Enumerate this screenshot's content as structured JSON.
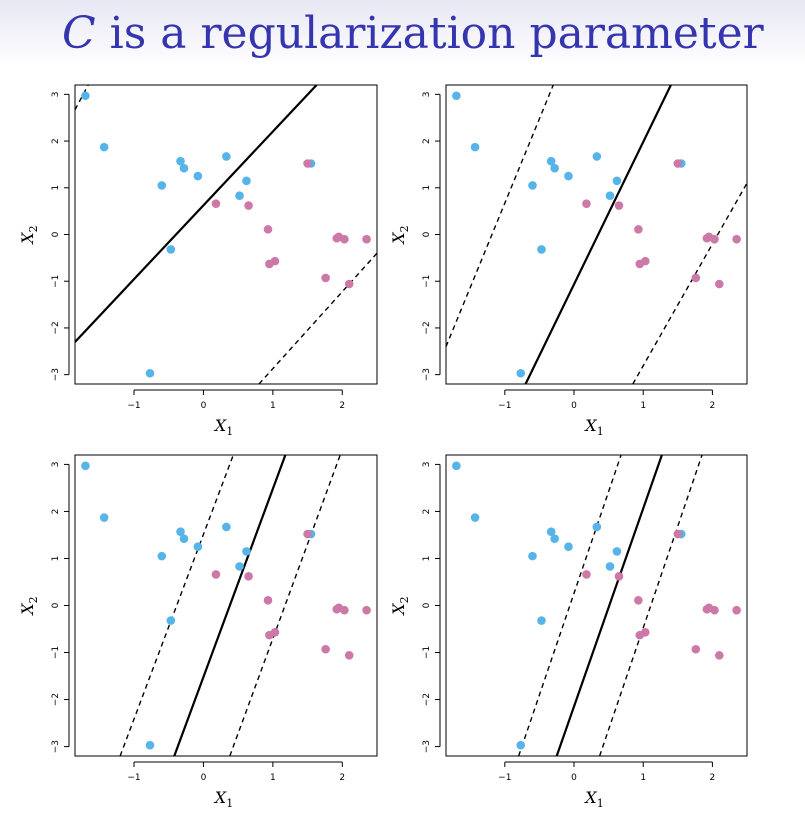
{
  "slide": {
    "title_var": "C",
    "title_rest": " is a regularization parameter"
  },
  "colors": {
    "class_a": "#56b4e9",
    "class_b": "#cc79a7",
    "line": "#000000"
  },
  "chart_data": [
    {
      "type": "scatter",
      "xlabel": "X1",
      "ylabel": "X2",
      "xlim": [
        -1.85,
        2.5
      ],
      "ylim": [
        -3.2,
        3.2
      ],
      "xticks": [
        -1,
        0,
        1,
        2
      ],
      "yticks": [
        -3,
        -2,
        -1,
        0,
        1,
        2,
        3
      ],
      "points_a": [
        [
          -1.7,
          2.97
        ],
        [
          -1.43,
          1.87
        ],
        [
          -0.6,
          1.05
        ],
        [
          -0.33,
          1.57
        ],
        [
          -0.28,
          1.42
        ],
        [
          -0.08,
          1.25
        ],
        [
          0.33,
          1.67
        ],
        [
          0.62,
          1.15
        ],
        [
          0.52,
          0.83
        ],
        [
          -0.47,
          -0.32
        ],
        [
          1.55,
          1.52
        ],
        [
          -0.77,
          -2.97
        ]
      ],
      "points_b": [
        [
          0.18,
          0.66
        ],
        [
          0.65,
          0.62
        ],
        [
          0.93,
          0.11
        ],
        [
          0.95,
          -0.63
        ],
        [
          1.03,
          -0.57
        ],
        [
          1.5,
          1.52
        ],
        [
          1.92,
          -0.08
        ],
        [
          1.95,
          -0.05
        ],
        [
          2.03,
          -0.1
        ],
        [
          2.35,
          -0.1
        ],
        [
          1.76,
          -0.93
        ],
        [
          2.1,
          -1.06
        ]
      ],
      "lines": {
        "solid": [
          [
            -1.85,
            -2.3
          ],
          [
            1.63,
            3.2
          ]
        ],
        "dashed": [
          [
            [
              -1.85,
              2.67
            ],
            [
              -1.66,
              3.2
            ]
          ],
          [
            [
              0.8,
              -3.2
            ],
            [
              2.5,
              -0.4
            ]
          ]
        ]
      }
    },
    {
      "type": "scatter",
      "xlabel": "X1",
      "ylabel": "X2",
      "xlim": [
        -1.85,
        2.5
      ],
      "ylim": [
        -3.2,
        3.2
      ],
      "xticks": [
        -1,
        0,
        1,
        2
      ],
      "yticks": [
        -3,
        -2,
        -1,
        0,
        1,
        2,
        3
      ],
      "points_a": [
        [
          -1.7,
          2.97
        ],
        [
          -1.43,
          1.87
        ],
        [
          -0.6,
          1.05
        ],
        [
          -0.33,
          1.57
        ],
        [
          -0.28,
          1.42
        ],
        [
          -0.08,
          1.25
        ],
        [
          0.33,
          1.67
        ],
        [
          0.62,
          1.15
        ],
        [
          0.52,
          0.83
        ],
        [
          -0.47,
          -0.32
        ],
        [
          1.55,
          1.52
        ],
        [
          -0.77,
          -2.97
        ]
      ],
      "points_b": [
        [
          0.18,
          0.66
        ],
        [
          0.65,
          0.62
        ],
        [
          0.93,
          0.11
        ],
        [
          0.95,
          -0.63
        ],
        [
          1.03,
          -0.57
        ],
        [
          1.5,
          1.52
        ],
        [
          1.92,
          -0.08
        ],
        [
          1.95,
          -0.05
        ],
        [
          2.03,
          -0.1
        ],
        [
          2.35,
          -0.1
        ],
        [
          1.76,
          -0.93
        ],
        [
          2.1,
          -1.06
        ]
      ],
      "lines": {
        "solid": [
          [
            -0.7,
            -3.2
          ],
          [
            1.4,
            3.2
          ]
        ],
        "dashed": [
          [
            [
              -1.85,
              -2.4
            ],
            [
              -0.3,
              3.2
            ]
          ],
          [
            [
              0.85,
              -3.2
            ],
            [
              2.5,
              1.1
            ]
          ]
        ]
      }
    },
    {
      "type": "scatter",
      "xlabel": "X1",
      "ylabel": "X2",
      "xlim": [
        -1.85,
        2.5
      ],
      "ylim": [
        -3.2,
        3.2
      ],
      "xticks": [
        -1,
        0,
        1,
        2
      ],
      "yticks": [
        -3,
        -2,
        -1,
        0,
        1,
        2,
        3
      ],
      "points_a": [
        [
          -1.7,
          2.97
        ],
        [
          -1.43,
          1.87
        ],
        [
          -0.6,
          1.05
        ],
        [
          -0.33,
          1.57
        ],
        [
          -0.28,
          1.42
        ],
        [
          -0.08,
          1.25
        ],
        [
          0.33,
          1.67
        ],
        [
          0.62,
          1.15
        ],
        [
          0.52,
          0.83
        ],
        [
          -0.47,
          -0.32
        ],
        [
          1.55,
          1.52
        ],
        [
          -0.77,
          -2.97
        ]
      ],
      "points_b": [
        [
          0.18,
          0.66
        ],
        [
          0.65,
          0.62
        ],
        [
          0.93,
          0.11
        ],
        [
          0.95,
          -0.63
        ],
        [
          1.03,
          -0.57
        ],
        [
          1.5,
          1.52
        ],
        [
          1.92,
          -0.08
        ],
        [
          1.95,
          -0.05
        ],
        [
          2.03,
          -0.1
        ],
        [
          2.35,
          -0.1
        ],
        [
          1.76,
          -0.93
        ],
        [
          2.1,
          -1.06
        ]
      ],
      "lines": {
        "solid": [
          [
            -0.42,
            -3.2
          ],
          [
            1.18,
            3.2
          ]
        ],
        "dashed": [
          [
            [
              -1.2,
              -3.2
            ],
            [
              0.43,
              3.2
            ]
          ],
          [
            [
              0.38,
              -3.2
            ],
            [
              1.97,
              3.2
            ]
          ]
        ]
      }
    },
    {
      "type": "scatter",
      "xlabel": "X1",
      "ylabel": "X2",
      "xlim": [
        -1.85,
        2.5
      ],
      "ylim": [
        -3.2,
        3.2
      ],
      "xticks": [
        -1,
        0,
        1,
        2
      ],
      "yticks": [
        -3,
        -2,
        -1,
        0,
        1,
        2,
        3
      ],
      "points_a": [
        [
          -1.7,
          2.97
        ],
        [
          -1.43,
          1.87
        ],
        [
          -0.6,
          1.05
        ],
        [
          -0.33,
          1.57
        ],
        [
          -0.28,
          1.42
        ],
        [
          -0.08,
          1.25
        ],
        [
          0.33,
          1.67
        ],
        [
          0.62,
          1.15
        ],
        [
          0.52,
          0.83
        ],
        [
          -0.47,
          -0.32
        ],
        [
          1.55,
          1.52
        ],
        [
          -0.77,
          -2.97
        ]
      ],
      "points_b": [
        [
          0.18,
          0.66
        ],
        [
          0.65,
          0.62
        ],
        [
          0.93,
          0.11
        ],
        [
          0.95,
          -0.63
        ],
        [
          1.03,
          -0.57
        ],
        [
          1.5,
          1.52
        ],
        [
          1.92,
          -0.08
        ],
        [
          1.95,
          -0.05
        ],
        [
          2.03,
          -0.1
        ],
        [
          2.35,
          -0.1
        ],
        [
          1.76,
          -0.93
        ],
        [
          2.1,
          -1.06
        ]
      ],
      "lines": {
        "solid": [
          [
            -0.25,
            -3.2
          ],
          [
            1.27,
            3.2
          ]
        ],
        "dashed": [
          [
            [
              -0.8,
              -3.2
            ],
            [
              0.68,
              3.2
            ]
          ],
          [
            [
              0.37,
              -3.2
            ],
            [
              1.85,
              3.2
            ]
          ]
        ]
      }
    }
  ]
}
